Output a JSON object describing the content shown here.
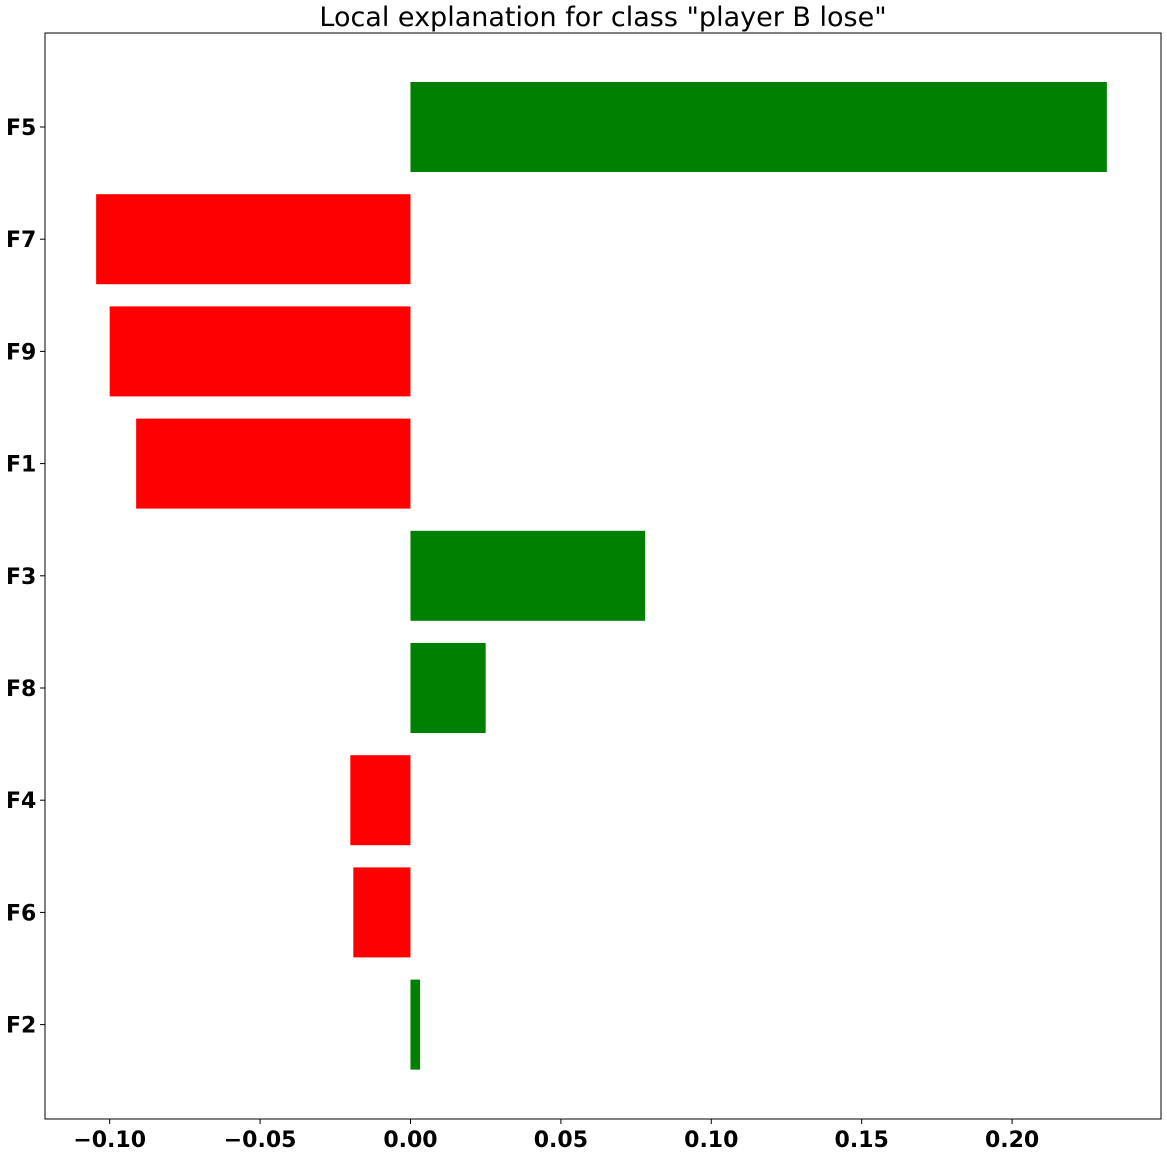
{
  "chart_data": {
    "type": "bar",
    "orientation": "horizontal",
    "title": "Local explanation for class \"player B lose\"",
    "xlabel": "",
    "ylabel": "",
    "categories": [
      "F5",
      "F7",
      "F9",
      "F1",
      "F3",
      "F8",
      "F4",
      "F6",
      "F2"
    ],
    "values": [
      0.2315,
      -0.1045,
      -0.1,
      -0.0912,
      0.078,
      0.025,
      -0.02,
      -0.019,
      0.0032
    ],
    "xlim": [
      -0.1215,
      0.2495
    ],
    "xticks": [
      -0.1,
      -0.05,
      0.0,
      0.05,
      0.1,
      0.15,
      0.2
    ],
    "xtick_labels": [
      "−0.10",
      "−0.05",
      "0.00",
      "0.05",
      "0.10",
      "0.15",
      "0.20"
    ],
    "positive_color": "#008000",
    "negative_color": "#ff0000",
    "grid": false,
    "legend": "none"
  }
}
